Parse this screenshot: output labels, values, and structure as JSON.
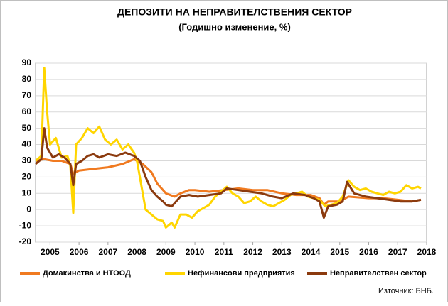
{
  "chart_data": {
    "type": "line",
    "title": "ДЕПОЗИТИ НА НЕПРАВИТЕЛСТВЕНИЯ СЕКТОР",
    "subtitle": "(Годишно изменение, %)",
    "source": "Източник: БНБ.",
    "xlim": [
      2004.5,
      2018
    ],
    "xticks": [
      2005,
      2006,
      2007,
      2008,
      2009,
      2010,
      2011,
      2012,
      2013,
      2014,
      2015,
      2016,
      2017,
      2018
    ],
    "ylim": [
      -20,
      90
    ],
    "yticks": [
      -20,
      -10,
      0,
      10,
      20,
      30,
      40,
      50,
      60,
      70,
      80,
      90
    ],
    "grid": true,
    "series": [
      {
        "name": "Домакинства и НТООД",
        "color": "#f07a20",
        "x": [
          2004.5,
          2004.8,
          2005.1,
          2005.4,
          2005.7,
          2005.8,
          2006.0,
          2006.5,
          2007.0,
          2007.5,
          2007.9,
          2008.2,
          2008.5,
          2008.7,
          2009.0,
          2009.3,
          2009.5,
          2009.8,
          2010.0,
          2010.5,
          2011.0,
          2011.5,
          2012.0,
          2012.5,
          2013.0,
          2013.5,
          2014.0,
          2014.3,
          2014.45,
          2014.6,
          2015.0,
          2015.3,
          2016.0,
          2016.5,
          2017.0,
          2017.5,
          2017.8
        ],
        "values": [
          30,
          31,
          30,
          30,
          28,
          22,
          24,
          25,
          26,
          28,
          31,
          28,
          23,
          16,
          10,
          8,
          10,
          12,
          12,
          11,
          12,
          13,
          12,
          12,
          10,
          9,
          9,
          7,
          3,
          5,
          5,
          8,
          7,
          7,
          6,
          5,
          6
        ]
      },
      {
        "name": "Нефинансови предприятия",
        "color": "#ffd500",
        "x": [
          2004.5,
          2004.7,
          2004.8,
          2004.9,
          2005.0,
          2005.2,
          2005.4,
          2005.6,
          2005.7,
          2005.8,
          2005.9,
          2006.1,
          2006.3,
          2006.5,
          2006.7,
          2006.9,
          2007.1,
          2007.3,
          2007.5,
          2007.7,
          2007.9,
          2008.0,
          2008.15,
          2008.3,
          2008.5,
          2008.7,
          2008.9,
          2009.0,
          2009.2,
          2009.3,
          2009.5,
          2009.7,
          2009.9,
          2010.1,
          2010.3,
          2010.5,
          2010.7,
          2010.9,
          2011.1,
          2011.3,
          2011.5,
          2011.7,
          2011.9,
          2012.1,
          2012.3,
          2012.5,
          2012.7,
          2012.9,
          2013.1,
          2013.3,
          2013.5,
          2013.7,
          2013.9,
          2014.1,
          2014.3,
          2014.5,
          2014.7,
          2014.9,
          2015.1,
          2015.3,
          2015.5,
          2015.7,
          2015.9,
          2016.1,
          2016.3,
          2016.5,
          2016.7,
          2016.9,
          2017.1,
          2017.3,
          2017.5,
          2017.7,
          2017.8
        ],
        "values": [
          30,
          33,
          87,
          60,
          40,
          44,
          32,
          33,
          27,
          -2,
          40,
          44,
          50,
          47,
          51,
          43,
          40,
          43,
          37,
          40,
          35,
          30,
          15,
          0,
          -3,
          -6,
          -7,
          -11,
          -8,
          -11,
          -3,
          -3,
          -5,
          -1,
          1,
          3,
          8,
          11,
          14,
          10,
          8,
          4,
          5,
          8,
          5,
          3,
          2,
          4,
          6,
          9,
          10,
          11,
          8,
          7,
          6,
          2,
          3,
          4,
          8,
          18,
          14,
          12,
          13,
          11,
          10,
          9,
          11,
          10,
          11,
          15,
          13,
          14,
          13
        ]
      },
      {
        "name": "Неправителствен сектор",
        "color": "#8b3a0e",
        "x": [
          2004.5,
          2004.7,
          2004.8,
          2004.9,
          2005.1,
          2005.3,
          2005.5,
          2005.7,
          2005.8,
          2005.9,
          2006.1,
          2006.3,
          2006.5,
          2006.7,
          2007.0,
          2007.3,
          2007.6,
          2007.9,
          2008.1,
          2008.3,
          2008.5,
          2008.7,
          2008.9,
          2009.0,
          2009.2,
          2009.5,
          2009.8,
          2010.1,
          2010.5,
          2010.9,
          2011.1,
          2011.5,
          2011.9,
          2012.3,
          2012.7,
          2013.0,
          2013.4,
          2013.8,
          2014.1,
          2014.3,
          2014.45,
          2014.6,
          2014.9,
          2015.1,
          2015.25,
          2015.5,
          2015.9,
          2016.3,
          2016.7,
          2017.1,
          2017.5,
          2017.8
        ],
        "values": [
          28,
          31,
          50,
          38,
          32,
          34,
          32,
          28,
          15,
          28,
          30,
          33,
          34,
          32,
          34,
          33,
          35,
          33,
          30,
          20,
          12,
          8,
          5,
          3,
          2,
          8,
          9,
          8,
          9,
          10,
          13,
          12,
          11,
          10,
          8,
          7,
          10,
          9,
          7,
          5,
          -5,
          2,
          3,
          5,
          17,
          10,
          8,
          7,
          6,
          5,
          5,
          6
        ]
      }
    ]
  }
}
